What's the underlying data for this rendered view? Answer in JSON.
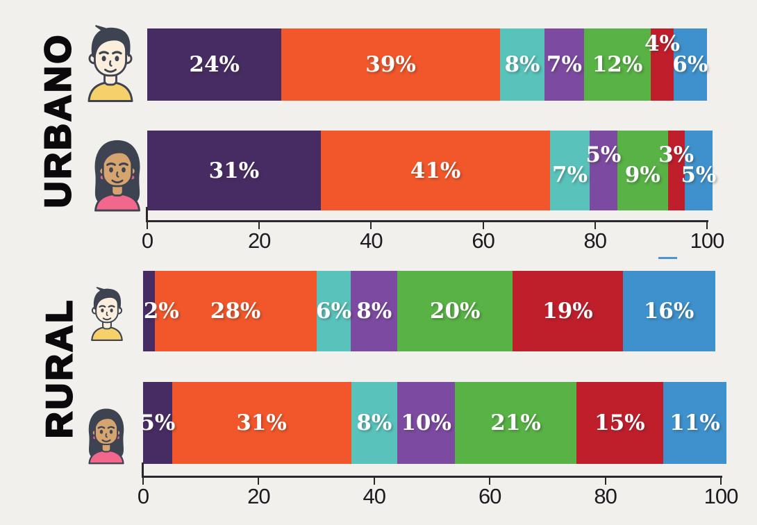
{
  "chart_data": [
    {
      "type": "bar",
      "stacked": true,
      "orientation": "horizontal",
      "group_label": "URBANO",
      "xlim": [
        0,
        100
      ],
      "x_ticks": [
        "0",
        "20",
        "40",
        "60",
        "80",
        "100"
      ],
      "grid": false,
      "legend": "none",
      "segment_colors": [
        "#472b63",
        "#f1572b",
        "#58c2bb",
        "#7c4aa0",
        "#58b245",
        "#bf1f2b",
        "#3e91cc"
      ],
      "rows": [
        {
          "category": "male",
          "values": [
            24,
            39,
            8,
            7,
            12,
            4,
            6
          ],
          "labels": [
            "24%",
            "39%",
            "8%",
            "7%",
            "12%",
            "4%",
            "6%"
          ]
        },
        {
          "category": "female",
          "values": [
            31,
            41,
            7,
            5,
            9,
            3,
            5
          ],
          "labels": [
            "31%",
            "41%",
            "7%",
            "5%",
            "9%",
            "3%",
            "5%"
          ]
        }
      ]
    },
    {
      "type": "bar",
      "stacked": true,
      "orientation": "horizontal",
      "group_label": "RURAL",
      "xlim": [
        0,
        100
      ],
      "x_ticks": [
        "0",
        "20",
        "40",
        "60",
        "80",
        "100"
      ],
      "grid": false,
      "legend": "none",
      "segment_colors": [
        "#472b63",
        "#f1572b",
        "#58c2bb",
        "#7c4aa0",
        "#58b245",
        "#bf1f2b",
        "#3e91cc"
      ],
      "rows": [
        {
          "category": "male",
          "values": [
            2,
            28,
            6,
            8,
            20,
            19,
            16
          ],
          "labels": [
            "2%",
            "28%",
            "6%",
            "8%",
            "20%",
            "19%",
            "16%"
          ]
        },
        {
          "category": "female",
          "values": [
            5,
            31,
            8,
            10,
            21,
            15,
            11
          ],
          "labels": [
            "5%",
            "31%",
            "8%",
            "10%",
            "21%",
            "15%",
            "11%"
          ]
        }
      ]
    }
  ],
  "style": {
    "background": "#f2f0ec",
    "bar_label_color": "#ffffff",
    "axis_color": "#2a282c",
    "tick_label_color": "#1d1b20",
    "section_label_color": "#0b090c",
    "blue_dash_color": "#4d94d0"
  },
  "avatars": {
    "male": {
      "hair": "#3e4351",
      "skin": "#fbeedd",
      "shirt": "#f6d06b",
      "outline": "#3e4351"
    },
    "female": {
      "hair": "#3e4351",
      "skin": "#d6a56f",
      "shirt": "#f2688c",
      "outline": "#3e4351",
      "earring": "#ef5f93"
    }
  }
}
